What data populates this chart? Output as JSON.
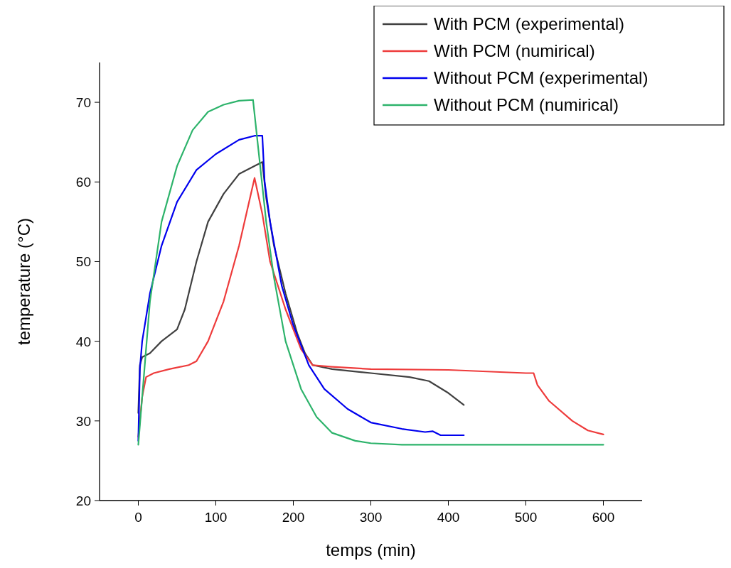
{
  "chart_data": {
    "type": "line",
    "xlabel": "temps (min)",
    "ylabel": "temperature (°C)",
    "xlim": [
      -50,
      650
    ],
    "xticks": [
      0,
      100,
      200,
      300,
      400,
      500,
      600
    ],
    "ylim": [
      20,
      75
    ],
    "yticks": [
      20,
      30,
      40,
      50,
      60,
      70
    ],
    "grid": false,
    "legend": "top right",
    "marker": "none",
    "line_style": "solid",
    "series": [
      {
        "name": "With PCM (experimental)",
        "color": "#404040",
        "x": [
          0,
          2,
          5,
          15,
          30,
          50,
          60,
          75,
          90,
          110,
          130,
          150,
          160,
          165,
          175,
          190,
          205,
          215,
          225,
          250,
          300,
          350,
          375,
          400,
          420
        ],
        "values": [
          31,
          37,
          38,
          38.5,
          40,
          41.5,
          44,
          50,
          55,
          58.5,
          61,
          62,
          62.5,
          58,
          52,
          46,
          41,
          38.5,
          37,
          36.5,
          36,
          35.5,
          35,
          33.5,
          32
        ]
      },
      {
        "name": "With PCM (numirical)",
        "color": "#ee3b3b",
        "x": [
          0,
          5,
          10,
          20,
          40,
          65,
          75,
          90,
          110,
          130,
          150,
          160,
          170,
          190,
          210,
          225,
          250,
          300,
          400,
          500,
          510,
          515,
          530,
          560,
          580,
          600
        ],
        "values": [
          28,
          33,
          35.5,
          36,
          36.5,
          37,
          37.5,
          40,
          45,
          52,
          60.5,
          56,
          50,
          44,
          39,
          37,
          36.8,
          36.5,
          36.4,
          36,
          36,
          34.5,
          32.5,
          30,
          28.8,
          28.3
        ]
      },
      {
        "name": "Without PCM (experimental)",
        "color": "#0000ee",
        "x": [
          0,
          2,
          5,
          15,
          30,
          50,
          75,
          100,
          130,
          150,
          160,
          163,
          170,
          185,
          200,
          220,
          240,
          270,
          300,
          340,
          370,
          380,
          390,
          420
        ],
        "values": [
          27.5,
          36.5,
          40,
          46,
          52,
          57.5,
          61.5,
          63.5,
          65.3,
          65.8,
          65.8,
          60,
          55,
          47,
          42,
          37,
          34,
          31.5,
          29.8,
          29,
          28.6,
          28.7,
          28.2,
          28.2
        ]
      },
      {
        "name": "Without PCM (numirical)",
        "color": "#2db36b",
        "x": [
          0,
          5,
          15,
          30,
          50,
          70,
          90,
          110,
          130,
          148,
          155,
          165,
          175,
          190,
          210,
          230,
          250,
          280,
          300,
          340,
          400,
          600
        ],
        "values": [
          27,
          33,
          45,
          55,
          62,
          66.5,
          68.8,
          69.7,
          70.2,
          70.3,
          64,
          55,
          48,
          40,
          34,
          30.5,
          28.5,
          27.5,
          27.2,
          27,
          27,
          27
        ]
      }
    ]
  }
}
